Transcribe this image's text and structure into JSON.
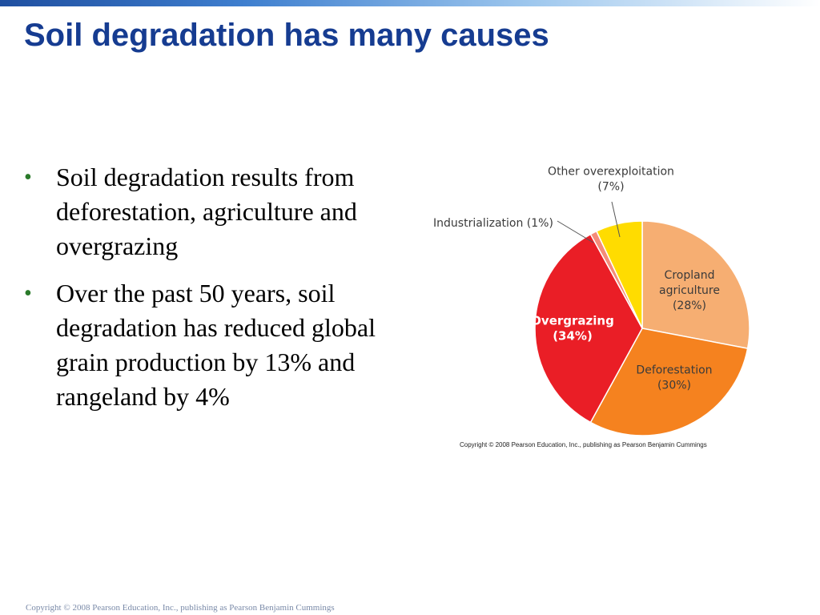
{
  "slide": {
    "title": "Soil degradation has many causes",
    "footer": "Copyright © 2008 Pearson Education, Inc., publishing as Pearson Benjamin Cummings",
    "bullets": [
      "Soil degradation results from deforestation, agriculture and overgrazing",
      "Over the past 50 years, soil degradation has reduced global grain production by 13% and rangeland by 4%"
    ],
    "bullet_glyph": "•"
  },
  "chart_data": {
    "type": "pie",
    "credit": "Copyright © 2008 Pearson Education, Inc., publishing as Pearson Benjamin Cummings",
    "slices": [
      {
        "label": "Cropland agriculture",
        "value": 28,
        "pct_text": "(28%)",
        "color": "#f6ae72"
      },
      {
        "label": "Deforestation",
        "value": 30,
        "pct_text": "(30%)",
        "color": "#f5821f"
      },
      {
        "label": "Overgrazing",
        "value": 34,
        "pct_text": "(34%)",
        "color": "#ea1e26"
      },
      {
        "label": "Industrialization",
        "value": 1,
        "pct_text": "(1%)",
        "color": "#f48c7a"
      },
      {
        "label": "Other overexploitation",
        "value": 7,
        "pct_text": "(7%)",
        "color": "#ffdc00"
      }
    ]
  }
}
